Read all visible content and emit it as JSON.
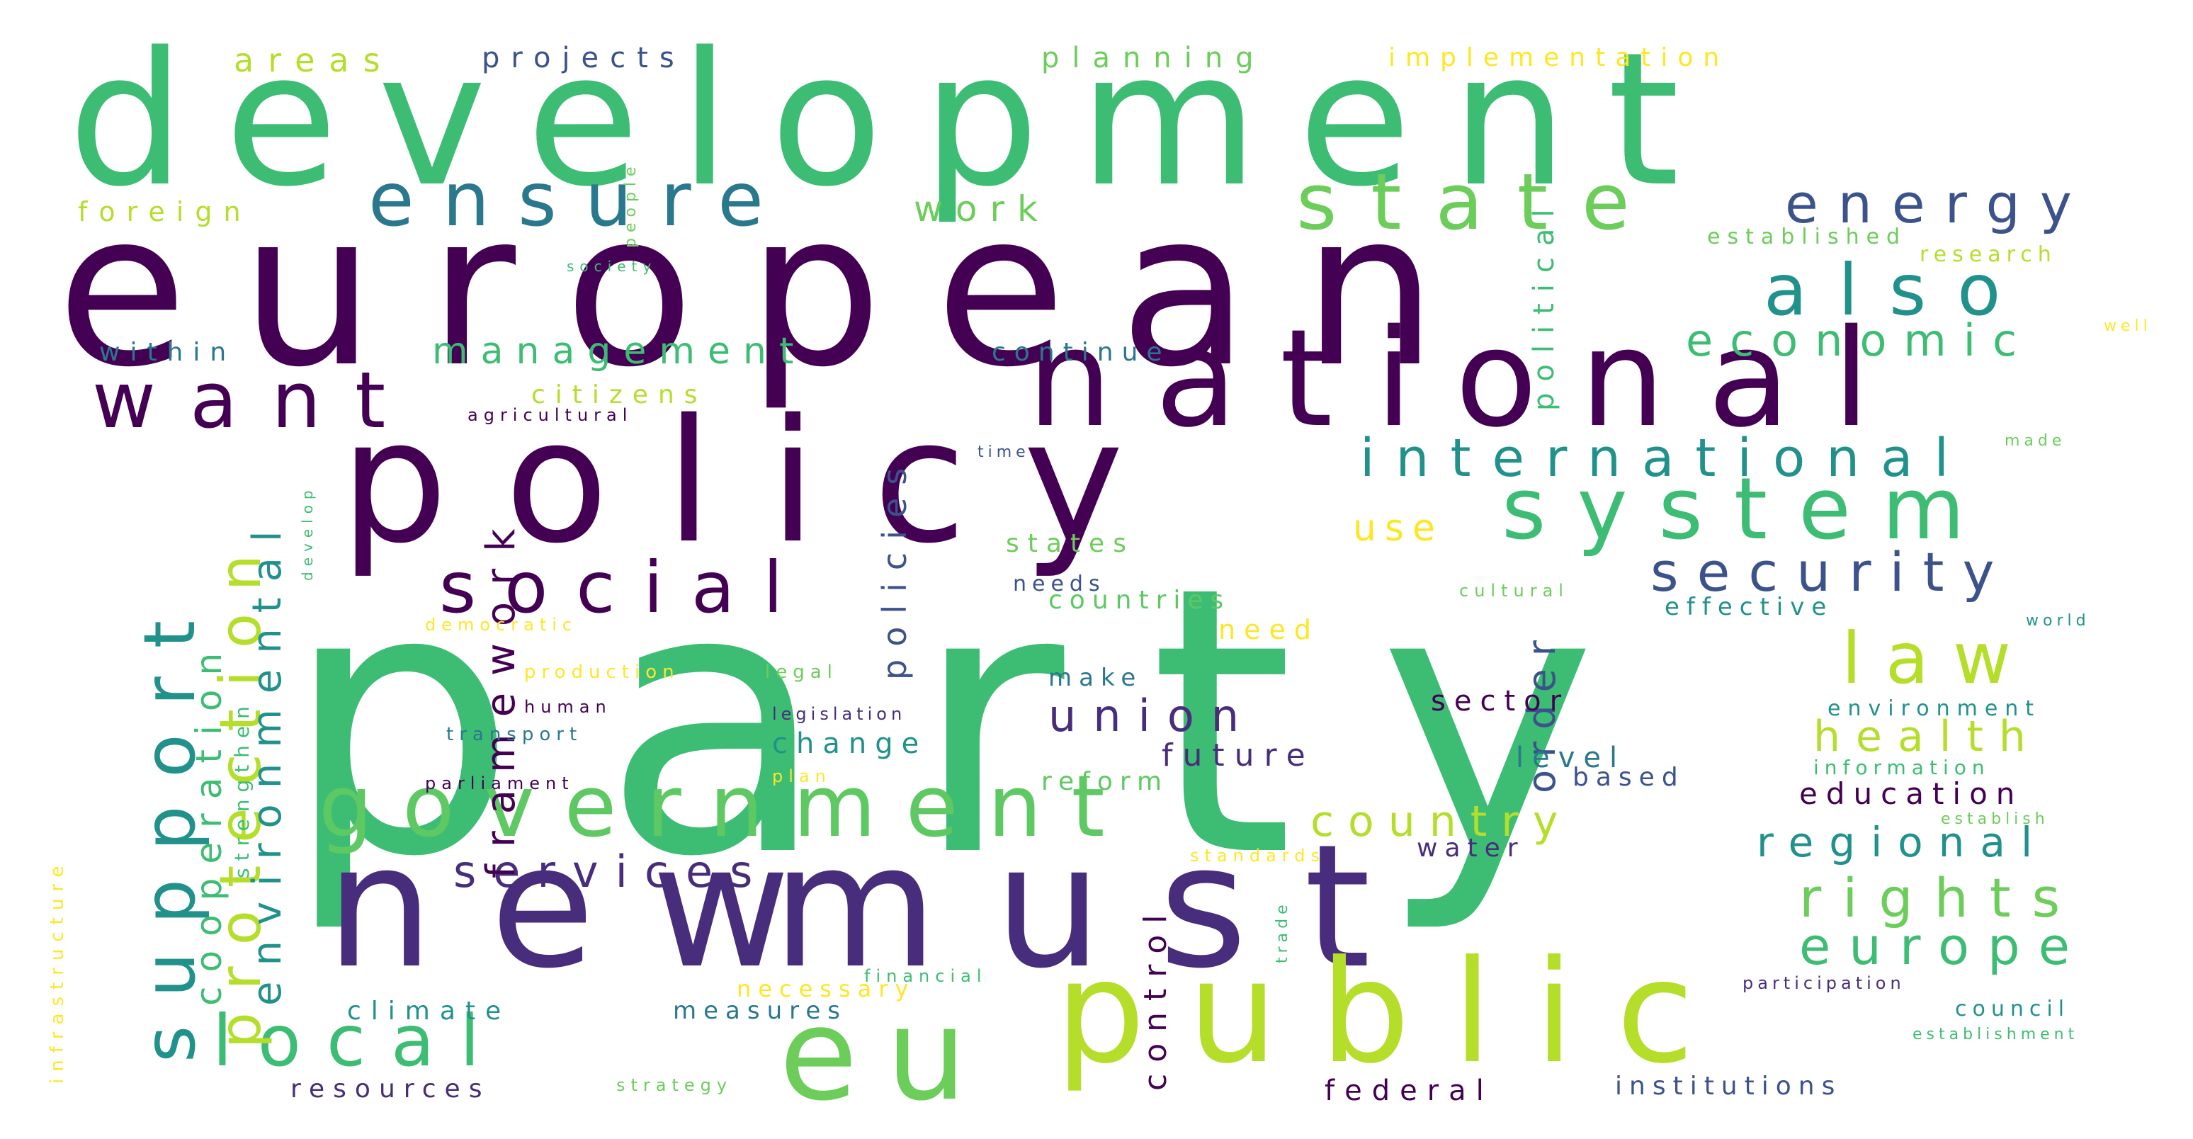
{
  "words": [
    "party",
    "european",
    "development",
    "policy",
    "new",
    "must",
    "national",
    "public",
    "eu",
    "government",
    "system",
    "want",
    "ensure",
    "state",
    "also",
    "social",
    "international",
    "law",
    "support",
    "local",
    "protection",
    "energy",
    "security",
    "economic",
    "rights",
    "europe",
    "health",
    "regional",
    "union",
    "services",
    "environmental",
    "cooperation",
    "framework",
    "country",
    "policies",
    "control",
    "order",
    "political",
    "future",
    "education",
    "areas",
    "projects",
    "planning",
    "implementation",
    "foreign",
    "work",
    "management",
    "within",
    "citizens",
    "continue",
    "established",
    "research",
    "effective",
    "states",
    "countries",
    "make",
    "change",
    "climate",
    "measures",
    "necessary",
    "resources",
    "federal",
    "institutions",
    "council",
    "reform",
    "sector",
    "water",
    "level",
    "based",
    "need",
    "needs",
    "use",
    "environment",
    "information",
    "strengthen",
    "infrastructure",
    "people",
    "society",
    "agricultural",
    "time",
    "develop",
    "democratic",
    "production",
    "legal",
    "legislation",
    "human",
    "transport",
    "parliament",
    "plan",
    "standards",
    "financial",
    "participation",
    "establish",
    "establishment",
    "strategy",
    "trade",
    "well",
    "made",
    "world",
    "cultural"
  ],
  "colors": {
    "background": "#ffffff",
    "palette": [
      "#440154",
      "#3b528b",
      "#21918c",
      "#5ec962",
      "#fde725",
      "#3dbd74",
      "#2a788e",
      "#6ccd5a",
      "#b5de2b",
      "#472d7b"
    ]
  }
}
